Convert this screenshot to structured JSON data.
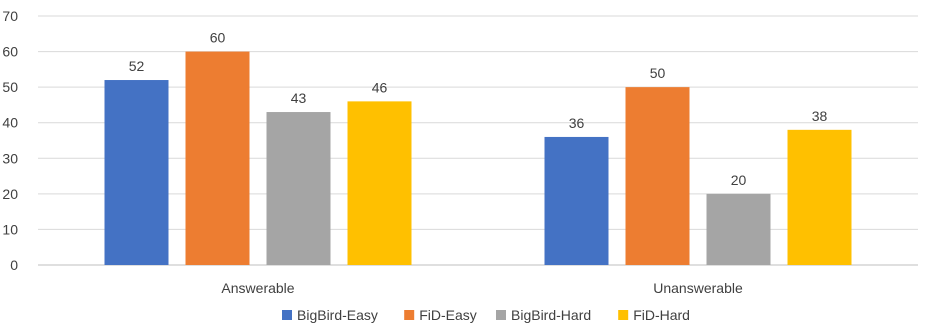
{
  "chart_data": {
    "type": "bar",
    "categories": [
      "Answerable",
      "Unanswerable"
    ],
    "series": [
      {
        "name": "BigBird-Easy",
        "values": [
          52,
          36
        ],
        "color": "#4472c4"
      },
      {
        "name": "FiD-Easy",
        "values": [
          60,
          50
        ],
        "color": "#ed7d31"
      },
      {
        "name": "BigBird-Hard",
        "values": [
          43,
          20
        ],
        "color": "#a5a5a5"
      },
      {
        "name": "FiD-Hard",
        "values": [
          46,
          38
        ],
        "color": "#ffc000"
      }
    ],
    "yticks": [
      0,
      10,
      20,
      30,
      40,
      50,
      60,
      70
    ],
    "ylim": [
      0,
      70
    ],
    "grid": true,
    "legend": "bottom",
    "data_labels": true
  }
}
